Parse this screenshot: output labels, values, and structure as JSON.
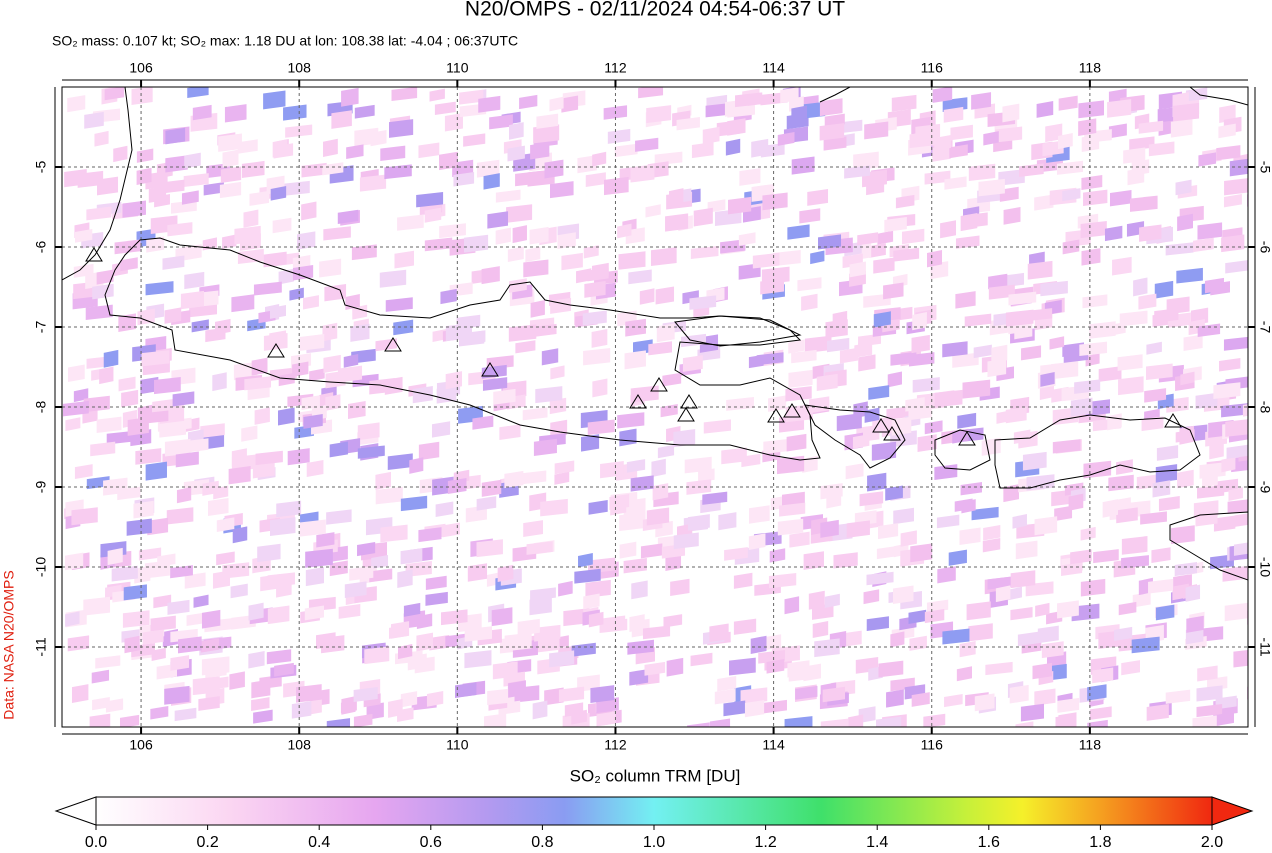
{
  "header": {
    "title": "N20/OMPS - 02/11/2024 04:54-06:37 UT",
    "subtitle": "SO₂ mass: 0.107 kt; SO₂ max: 1.18 DU at lon: 108.38 lat: -4.04 ; 06:37UTC"
  },
  "map": {
    "lonlim": [
      105,
      120
    ],
    "latlim": [
      -12,
      -4
    ],
    "lonticks": [
      106,
      108,
      110,
      112,
      114,
      116,
      118
    ],
    "latticks": [
      -5,
      -6,
      -7,
      -8,
      -9,
      -10,
      -11
    ],
    "grid": true
  },
  "colorbar": {
    "label": "SO₂ column TRM [DU]",
    "lim": [
      0,
      2
    ],
    "ticks": [
      {
        "value": 0,
        "label": "0.0"
      },
      {
        "value": 0.2,
        "label": "0.2"
      },
      {
        "value": 0.4,
        "label": "0.4"
      },
      {
        "value": 0.6,
        "label": "0.6"
      },
      {
        "value": 0.8,
        "label": "0.8"
      },
      {
        "value": 1,
        "label": "1.0"
      },
      {
        "value": 1.2,
        "label": "1.2"
      },
      {
        "value": 1.4,
        "label": "1.4"
      },
      {
        "value": 1.6,
        "label": "1.6"
      },
      {
        "value": 1.8,
        "label": "1.8"
      },
      {
        "value": 2,
        "label": "2.0"
      }
    ]
  },
  "credit": "Data: NASA N20/OMPS"
}
